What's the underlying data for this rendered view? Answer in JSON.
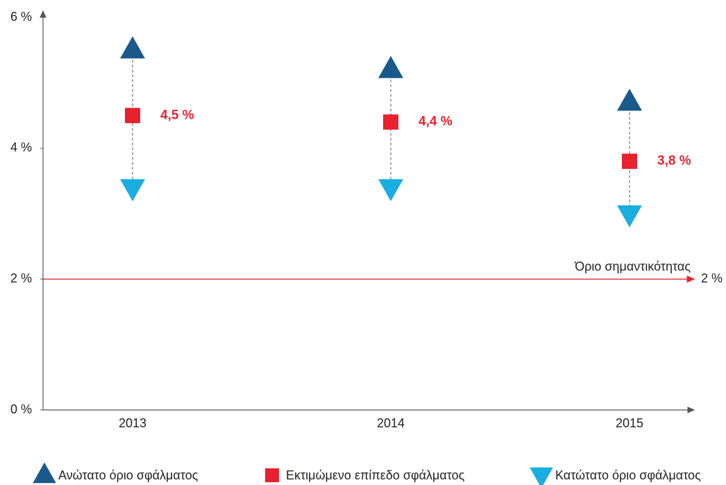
{
  "chart_data": {
    "type": "scatter",
    "categories": [
      "2013",
      "2014",
      "2015"
    ],
    "series": [
      {
        "name": "Ανώτατο όριο σφάλματος",
        "color": "#1a5a8a",
        "marker": "triangle-up",
        "values": [
          5.5,
          5.2,
          4.7
        ]
      },
      {
        "name": "Εκτιμώμενο επίπεδο σφάλματος",
        "color": "#e8212f",
        "marker": "square",
        "values": [
          4.5,
          4.4,
          3.8
        ],
        "value_labels": [
          "4,5 %",
          "4,4 %",
          "3,8 %"
        ]
      },
      {
        "name": "Κατώτατο όριο σφάλματος",
        "color": "#1aaee0",
        "marker": "triangle-down",
        "values": [
          3.4,
          3.4,
          3.0
        ]
      }
    ],
    "ylim": [
      0,
      6
    ],
    "yticks": [
      {
        "value": 0,
        "label": "0 %"
      },
      {
        "value": 2,
        "label": "2 %"
      },
      {
        "value": 4,
        "label": "4 %"
      },
      {
        "value": 6,
        "label": "6 %"
      }
    ],
    "threshold": {
      "name": "Όριο σημαντικότητας",
      "value": 2,
      "label": "2 %",
      "color": "#e8212f"
    },
    "legend": "bottom"
  }
}
